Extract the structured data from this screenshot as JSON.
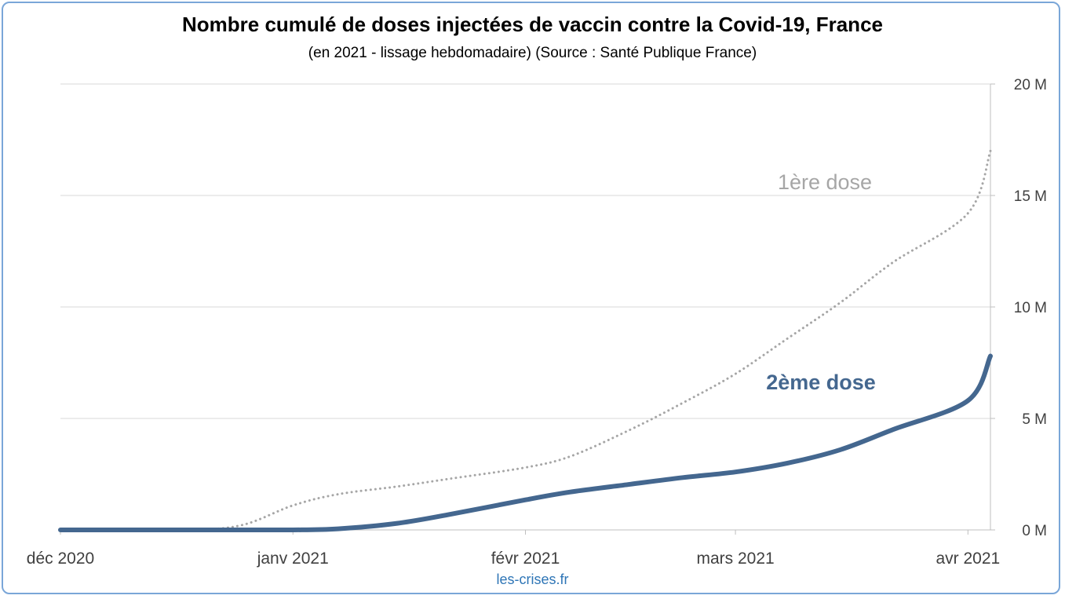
{
  "chart_data": {
    "type": "line",
    "title": "Nombre cumulé de doses injectées de vaccin contre la Covid-19, France",
    "subtitle": "(en 2021 - lissage hebdomadaire) (Source : Santé Publique France)",
    "y_axis": {
      "position": "right",
      "ylim": [
        0,
        20000000
      ],
      "ticks": [
        0,
        5000000,
        10000000,
        15000000,
        20000000
      ],
      "tick_labels": [
        "0 M",
        "5 M",
        "10 M",
        "15 M",
        "20 M"
      ]
    },
    "x_axis": {
      "range": [
        "2020-12-01",
        "2021-04-04"
      ],
      "ticks": [
        "2020-12-01",
        "2021-01-01",
        "2021-02-01",
        "2021-03-01",
        "2021-04-01"
      ],
      "tick_labels": [
        "déc 2020",
        "janv 2021",
        "févr 2021",
        "mars 2021",
        "avr 2021"
      ]
    },
    "grid": "horizontal",
    "series": [
      {
        "name": "1ère dose",
        "style": "dotted",
        "color": "#a6a6a6",
        "x": [
          "2020-12-01",
          "2020-12-17",
          "2020-12-25",
          "2021-01-01",
          "2021-01-07",
          "2021-01-15",
          "2021-01-22",
          "2021-02-01",
          "2021-02-07",
          "2021-02-15",
          "2021-02-22",
          "2021-03-01",
          "2021-03-08",
          "2021-03-15",
          "2021-03-22",
          "2021-04-01",
          "2021-04-04"
        ],
        "y": [
          0,
          0,
          200000,
          1100000,
          1600000,
          1950000,
          2300000,
          2800000,
          3300000,
          4500000,
          5700000,
          7000000,
          8600000,
          10200000,
          12000000,
          14200000,
          17000000
        ]
      },
      {
        "name": "2ème dose",
        "style": "solid",
        "color": "#44678f",
        "x": [
          "2020-12-01",
          "2020-12-25",
          "2021-01-01",
          "2021-01-07",
          "2021-01-15",
          "2021-01-22",
          "2021-02-01",
          "2021-02-07",
          "2021-02-15",
          "2021-02-22",
          "2021-03-01",
          "2021-03-08",
          "2021-03-15",
          "2021-03-22",
          "2021-04-01",
          "2021-04-04"
        ],
        "y": [
          0,
          0,
          0,
          50000,
          300000,
          700000,
          1350000,
          1700000,
          2050000,
          2350000,
          2600000,
          3000000,
          3600000,
          4500000,
          5800000,
          7800000
        ]
      }
    ]
  },
  "footer": {
    "source": "les-crises.fr"
  }
}
